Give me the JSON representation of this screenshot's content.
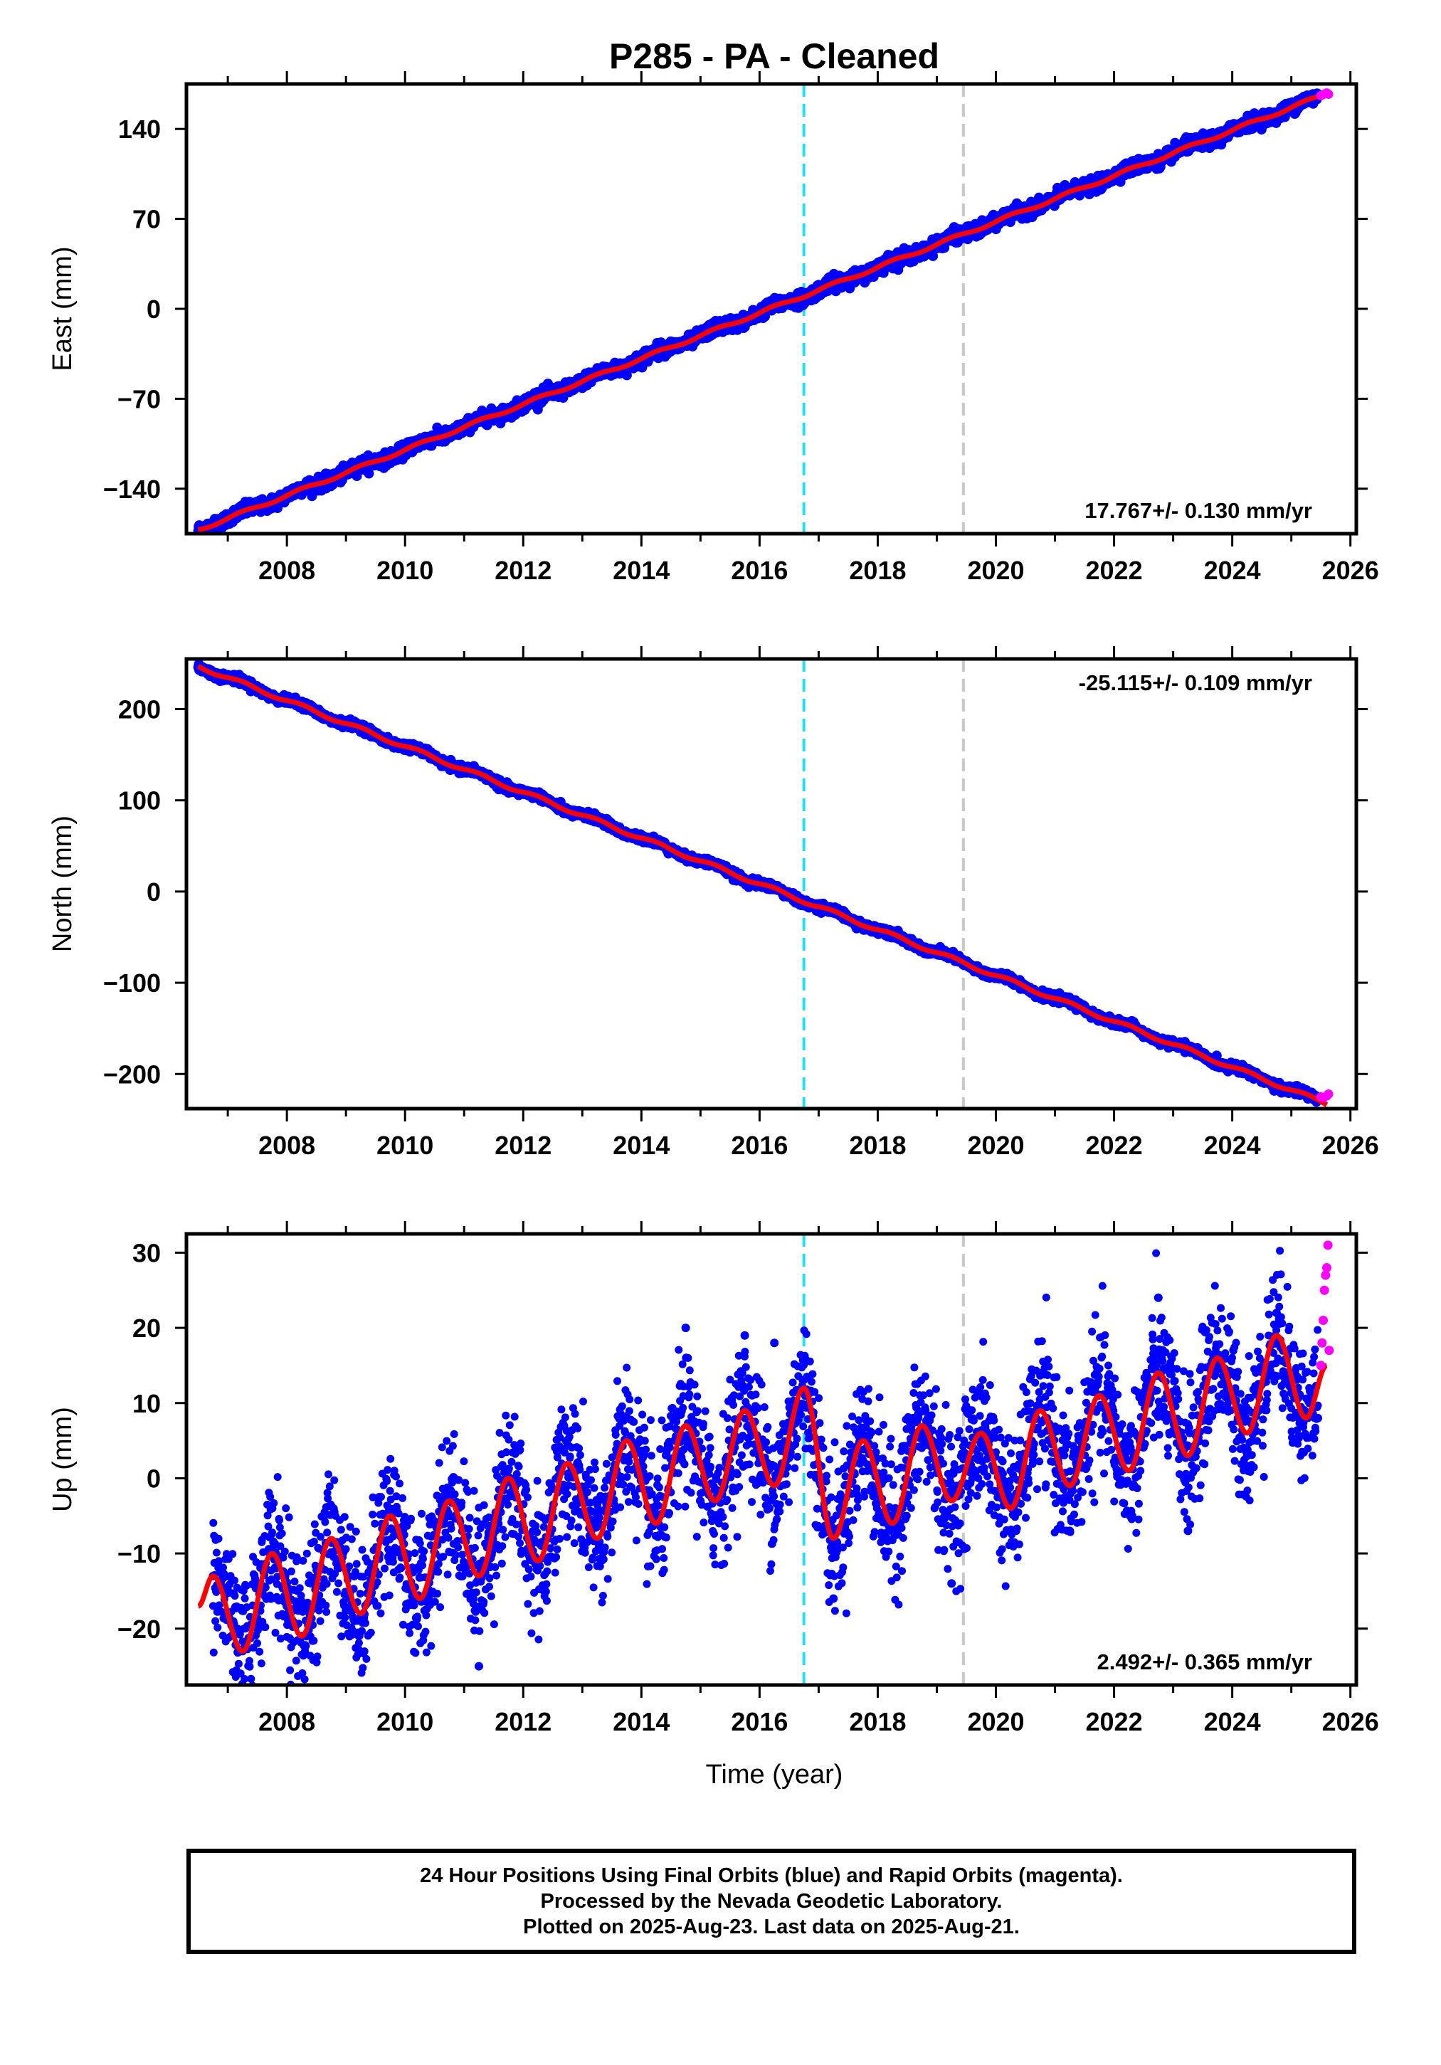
{
  "chart_data": [
    {
      "type": "scatter",
      "title": "P285  - PA - Cleaned",
      "xlabel": "",
      "ylabel": "East (mm)",
      "xlim": [
        2006.3,
        2026.1
      ],
      "ylim": [
        -175,
        175
      ],
      "xticks": [
        2008,
        2010,
        2012,
        2014,
        2016,
        2018,
        2020,
        2022,
        2024,
        2026
      ],
      "yticks": [
        -140,
        -70,
        0,
        70,
        140
      ],
      "ytick_labels": [
        "−140",
        "−70",
        "0",
        "70",
        "140"
      ],
      "rate_label": "17.767+/- 0.130 mm/yr",
      "rate_position": "bottom-right",
      "vertical_lines": [
        {
          "x": 2016.75,
          "color": "#22e0f0"
        },
        {
          "x": 2019.45,
          "color": "#c8c8c8"
        }
      ],
      "model": {
        "start_year": 2006.5,
        "start_value": -172,
        "rate": 17.767,
        "annual_amplitude": 1.5,
        "noise": 2.5
      },
      "series": [
        {
          "role": "final-orbits",
          "color": "#0000ff",
          "x": [
            2006.5,
            2008.0,
            2010.0,
            2012.0,
            2014.0,
            2016.0,
            2018.0,
            2020.0,
            2022.0,
            2024.0,
            2025.45
          ],
          "y": [
            -172,
            -145,
            -108,
            -73,
            -37,
            0,
            35,
            70,
            106,
            142,
            166
          ]
        },
        {
          "role": "rapid-orbits",
          "color": "#ff00ff",
          "x": [
            2025.5,
            2025.55,
            2025.6,
            2025.63
          ],
          "y": [
            166,
            167,
            168,
            167
          ]
        },
        {
          "role": "trend-fit",
          "color": "#ff0000",
          "x": [
            2006.5,
            2025.6
          ],
          "y": [
            -172,
            168
          ]
        }
      ]
    },
    {
      "type": "scatter",
      "title": "",
      "xlabel": "",
      "ylabel": "North (mm)",
      "xlim": [
        2006.3,
        2026.1
      ],
      "ylim": [
        -238,
        255
      ],
      "xticks": [
        2008,
        2010,
        2012,
        2014,
        2016,
        2018,
        2020,
        2022,
        2024,
        2026
      ],
      "yticks": [
        -200,
        -100,
        0,
        100,
        200
      ],
      "ytick_labels": [
        "−200",
        "−100",
        "0",
        "100",
        "200"
      ],
      "rate_label": "-25.115+/- 0.109 mm/yr",
      "rate_position": "top-right",
      "vertical_lines": [
        {
          "x": 2016.75,
          "color": "#22e0f0"
        },
        {
          "x": 2019.45,
          "color": "#c8c8c8"
        }
      ],
      "model": {
        "start_year": 2006.5,
        "start_value": 247,
        "rate": -25.115,
        "annual_amplitude": 2.5,
        "noise": 2.0
      },
      "series": [
        {
          "role": "final-orbits",
          "color": "#0000ff",
          "x": [
            2006.5,
            2008.0,
            2010.0,
            2012.0,
            2014.0,
            2016.0,
            2018.0,
            2020.0,
            2022.0,
            2024.0,
            2025.45
          ],
          "y": [
            247,
            210,
            160,
            110,
            59,
            9,
            -41,
            -91,
            -141,
            -191,
            -226
          ]
        },
        {
          "role": "rapid-orbits",
          "color": "#ff00ff",
          "x": [
            2025.5,
            2025.55,
            2025.6,
            2025.63
          ],
          "y": [
            -225,
            -226,
            -224,
            -222
          ]
        },
        {
          "role": "trend-fit",
          "color": "#ff0000",
          "x": [
            2006.5,
            2025.6
          ],
          "y": [
            247,
            -228
          ]
        }
      ]
    },
    {
      "type": "scatter",
      "title": "",
      "xlabel": "Time (year)",
      "ylabel": "Up (mm)",
      "xlim": [
        2006.3,
        2026.1
      ],
      "ylim": [
        -27.5,
        32.5
      ],
      "xticks": [
        2008,
        2010,
        2012,
        2014,
        2016,
        2018,
        2020,
        2022,
        2024,
        2026
      ],
      "yticks": [
        -20,
        -10,
        0,
        10,
        20,
        30
      ],
      "ytick_labels": [
        "−20",
        "−10",
        "0",
        "10",
        "20",
        "30"
      ],
      "rate_label": "2.492+/- 0.365 mm/yr",
      "rate_position": "bottom-right",
      "vertical_lines": [
        {
          "x": 2016.75,
          "color": "#22e0f0"
        },
        {
          "x": 2019.45,
          "color": "#c8c8c8"
        }
      ],
      "fit_curve": {
        "x": [
          2006.5,
          2006.75,
          2007.25,
          2007.75,
          2008.25,
          2008.75,
          2009.25,
          2009.75,
          2010.25,
          2010.75,
          2011.25,
          2011.75,
          2012.25,
          2012.75,
          2013.25,
          2013.75,
          2014.25,
          2014.75,
          2015.25,
          2015.75,
          2016.25,
          2016.75,
          2017.25,
          2017.75,
          2018.25,
          2018.75,
          2019.25,
          2019.75,
          2020.25,
          2020.75,
          2021.25,
          2021.75,
          2022.25,
          2022.75,
          2023.25,
          2023.75,
          2024.25,
          2024.75,
          2025.25,
          2025.6
        ],
        "y": [
          -17,
          -13,
          -23,
          -10,
          -21,
          -8,
          -18,
          -5,
          -16,
          -3,
          -13,
          0,
          -11,
          2,
          -8,
          5,
          -6,
          7,
          -3,
          9,
          -1,
          12,
          -8,
          5,
          -6,
          7,
          -3,
          6,
          -4,
          9,
          -1,
          11,
          1,
          14,
          3,
          16,
          6,
          19,
          8,
          15
        ]
      },
      "scatter_spread": 4.5,
      "series": [
        {
          "role": "final-orbits",
          "color": "#0000ff",
          "x": [
            2006.75,
            2007.25,
            2008.25,
            2011.25,
            2014.75,
            2015.75,
            2016.25,
            2017.25,
            2019.25,
            2021.25,
            2022.75,
            2023.25,
            2024.75,
            2025.45
          ],
          "y": [
            -13,
            -23,
            -21,
            -25,
            20,
            19,
            18,
            -16,
            -14,
            -7,
            24,
            -7,
            22,
            8
          ]
        },
        {
          "role": "rapid-orbits",
          "color": "#ff00ff",
          "x": [
            2025.5,
            2025.52,
            2025.54,
            2025.56,
            2025.58,
            2025.6,
            2025.62,
            2025.64
          ],
          "y": [
            15,
            18,
            21,
            25,
            27,
            28,
            31,
            17
          ]
        },
        {
          "role": "seasonal-fit",
          "color": "#ff0000",
          "x": [
            2006.5,
            2025.6
          ],
          "y": [
            -17,
            15
          ]
        }
      ]
    }
  ],
  "footer": {
    "line1": "24 Hour Positions Using Final Orbits (blue) and Rapid Orbits (magenta).",
    "line2": "Processed by the Nevada Geodetic Laboratory.",
    "line3": "Plotted on 2025-Aug-23. Last data on 2025-Aug-21."
  }
}
